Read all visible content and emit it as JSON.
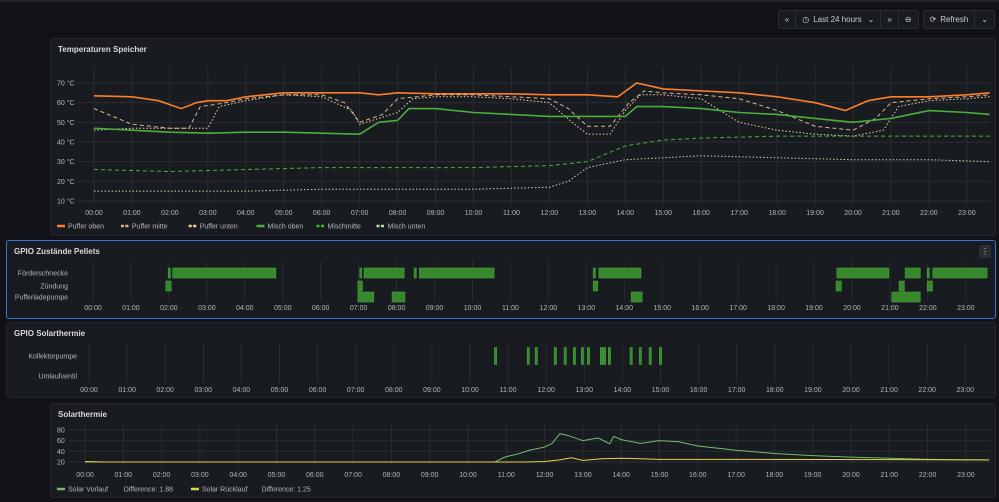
{
  "toolbar": {
    "back_icon": "chevron-double-left-icon",
    "clock_icon": "clock-icon",
    "time_range": "Last 24 hours",
    "forward_icon": "chevron-double-right-icon",
    "zoom_out_icon": "zoom-out-icon",
    "refresh_label": "Refresh",
    "refresh_icon": "refresh-icon"
  },
  "hours": [
    "00:00",
    "01:00",
    "02:00",
    "03:00",
    "04:00",
    "05:00",
    "06:00",
    "07:00",
    "08:00",
    "09:00",
    "10:00",
    "11:00",
    "12:00",
    "13:00",
    "14:00",
    "15:00",
    "16:00",
    "17:00",
    "18:00",
    "19:00",
    "20:00",
    "21:00",
    "22:00",
    "23:00"
  ],
  "colors": {
    "orange": "#ff7f2a",
    "beige": "#e0b68a",
    "green": "#4caf3c",
    "dgreen": "#3f8f3a",
    "vorlauf": "#73bf69",
    "ruecklauf": "#e8d04a"
  },
  "panels": {
    "temp": {
      "title": "Temperaturen Speicher"
    },
    "pellets": {
      "title": "GPIO Zustände Pellets",
      "menu": "⋮"
    },
    "gpio_solar": {
      "title": "GPIO Solarthermie"
    },
    "solar": {
      "title": "Solarthermie"
    }
  },
  "chart_data": [
    {
      "type": "line",
      "title": "Temperaturen Speicher",
      "yticks": [
        "70 °C",
        "60 °C",
        "50 °C",
        "40 °C",
        "30 °C",
        "20 °C",
        "10 °C"
      ],
      "ylim": [
        10,
        70
      ],
      "legend": "bottom",
      "series": [
        {
          "name": "Puffer oben",
          "color": "#ff7f2a",
          "style": "solid",
          "points": [
            [
              0,
              63.5
            ],
            [
              1,
              63
            ],
            [
              1.7,
              61
            ],
            [
              2.3,
              57
            ],
            [
              2.7,
              60
            ],
            [
              3,
              61
            ],
            [
              3.5,
              61
            ],
            [
              4,
              63
            ],
            [
              5,
              65
            ],
            [
              6,
              65
            ],
            [
              7,
              65
            ],
            [
              7.5,
              64
            ],
            [
              8,
              65
            ],
            [
              9,
              64.5
            ],
            [
              10,
              64.5
            ],
            [
              11,
              64.5
            ],
            [
              12,
              64
            ],
            [
              13,
              64
            ],
            [
              13.8,
              63
            ],
            [
              14.3,
              70
            ],
            [
              15,
              67
            ],
            [
              16,
              66
            ],
            [
              17,
              65
            ],
            [
              18,
              63
            ],
            [
              19,
              60
            ],
            [
              19.8,
              56
            ],
            [
              20.4,
              61
            ],
            [
              21,
              63
            ],
            [
              22,
              63
            ],
            [
              23,
              64
            ],
            [
              23.6,
              65
            ]
          ]
        },
        {
          "name": "Puffer mitte",
          "color": "#e0b68a",
          "style": "dash",
          "points": [
            [
              0,
              57
            ],
            [
              1,
              49
            ],
            [
              2,
              47
            ],
            [
              2.5,
              47
            ],
            [
              2.8,
              58
            ],
            [
              3.5,
              60
            ],
            [
              4,
              62
            ],
            [
              5,
              64
            ],
            [
              6,
              64
            ],
            [
              6.6,
              60
            ],
            [
              7,
              50
            ],
            [
              7.6,
              54
            ],
            [
              8,
              62
            ],
            [
              9,
              64
            ],
            [
              10,
              64
            ],
            [
              11,
              63
            ],
            [
              12,
              62
            ],
            [
              12.5,
              57
            ],
            [
              13,
              48
            ],
            [
              13.6,
              48
            ],
            [
              14.1,
              60
            ],
            [
              14.5,
              66
            ],
            [
              15,
              65
            ],
            [
              16,
              64
            ],
            [
              17,
              62
            ],
            [
              18,
              56
            ],
            [
              19,
              48
            ],
            [
              20,
              46
            ],
            [
              20.6,
              52
            ],
            [
              21,
              60
            ],
            [
              22,
              62
            ],
            [
              23,
              63
            ],
            [
              23.6,
              64
            ]
          ]
        },
        {
          "name": "Puffer unten",
          "color": "#f2d3a5",
          "style": "dot",
          "points": [
            [
              0,
              46
            ],
            [
              1,
              47
            ],
            [
              2,
              47
            ],
            [
              3,
              47
            ],
            [
              3.3,
              58
            ],
            [
              4,
              61
            ],
            [
              5,
              64
            ],
            [
              6,
              63
            ],
            [
              6.8,
              56
            ],
            [
              7,
              49
            ],
            [
              8,
              55
            ],
            [
              8.4,
              62
            ],
            [
              9,
              63
            ],
            [
              10,
              63
            ],
            [
              11,
              62
            ],
            [
              12,
              60
            ],
            [
              12.6,
              50
            ],
            [
              13,
              44
            ],
            [
              13.6,
              44
            ],
            [
              14,
              56
            ],
            [
              14.4,
              64
            ],
            [
              15,
              64
            ],
            [
              16,
              62
            ],
            [
              16.5,
              56
            ],
            [
              17,
              50
            ],
            [
              18,
              46
            ],
            [
              19,
              44
            ],
            [
              20,
              43
            ],
            [
              20.8,
              46
            ],
            [
              21.2,
              58
            ],
            [
              22,
              61
            ],
            [
              23,
              62
            ],
            [
              23.6,
              63
            ]
          ]
        },
        {
          "name": "Misch oben",
          "color": "#4caf3c",
          "style": "solid",
          "points": [
            [
              0,
              47
            ],
            [
              1,
              46
            ],
            [
              2,
              45
            ],
            [
              3,
              44.5
            ],
            [
              4,
              45
            ],
            [
              5,
              45
            ],
            [
              6,
              44.5
            ],
            [
              7,
              44
            ],
            [
              7.5,
              50
            ],
            [
              8,
              51
            ],
            [
              8.3,
              57
            ],
            [
              9,
              57
            ],
            [
              10,
              55
            ],
            [
              11,
              54
            ],
            [
              12,
              53
            ],
            [
              13,
              53
            ],
            [
              14,
              53
            ],
            [
              14.3,
              58
            ],
            [
              15,
              58
            ],
            [
              16,
              57
            ],
            [
              17,
              55
            ],
            [
              18,
              54
            ],
            [
              19,
              52
            ],
            [
              20,
              50
            ],
            [
              21,
              52
            ],
            [
              22,
              56
            ],
            [
              23,
              55
            ],
            [
              23.6,
              54
            ]
          ]
        },
        {
          "name": "Mischmitte",
          "color": "#4caf3c",
          "style": "dash",
          "points": [
            [
              0,
              26
            ],
            [
              2,
              25
            ],
            [
              4,
              26
            ],
            [
              6,
              27
            ],
            [
              8,
              27
            ],
            [
              10,
              27
            ],
            [
              12,
              28
            ],
            [
              13,
              30
            ],
            [
              14,
              38
            ],
            [
              15,
              41
            ],
            [
              16,
              42
            ],
            [
              18,
              43
            ],
            [
              20,
              43
            ],
            [
              22,
              43
            ],
            [
              23.6,
              43
            ]
          ]
        },
        {
          "name": "Misch unten",
          "color": "#b8e3b0",
          "style": "dot",
          "points": [
            [
              0,
              15
            ],
            [
              2,
              15
            ],
            [
              4,
              15
            ],
            [
              6,
              16
            ],
            [
              8,
              16
            ],
            [
              10,
              16
            ],
            [
              12,
              17
            ],
            [
              12.5,
              20
            ],
            [
              13,
              27
            ],
            [
              14,
              31
            ],
            [
              15,
              32
            ],
            [
              16,
              33
            ],
            [
              18,
              32
            ],
            [
              20,
              31
            ],
            [
              22,
              31
            ],
            [
              23.6,
              30
            ]
          ]
        }
      ]
    },
    {
      "type": "state-timeline",
      "title": "GPIO Zustände Pellets",
      "rows": [
        {
          "name": "Förderschnecke",
          "on": [
            [
              1.98,
              2.04
            ],
            [
              2.1,
              4.82
            ],
            [
              7.03,
              7.08
            ],
            [
              7.14,
              8.2
            ],
            [
              8.46,
              8.52
            ],
            [
              8.6,
              10.57
            ],
            [
              13.18,
              13.24
            ],
            [
              13.33,
              14.44
            ],
            [
              19.6,
              20.97
            ],
            [
              21.4,
              21.8
            ],
            [
              21.98,
              22.04
            ],
            [
              22.13,
              23.56
            ]
          ]
        },
        {
          "name": "Zündung",
          "on": [
            [
              1.92,
              2.06
            ],
            [
              6.98,
              7.1
            ],
            [
              13.18,
              13.3
            ],
            [
              19.58,
              19.72
            ],
            [
              21.24,
              21.38
            ],
            [
              21.98,
              22.12
            ]
          ]
        },
        {
          "name": "Pufferladepumpe",
          "on": [
            [
              6.98,
              7.4
            ],
            [
              7.88,
              8.22
            ],
            [
              14.18,
              14.47
            ],
            [
              21.05,
              21.8
            ]
          ]
        }
      ]
    },
    {
      "type": "state-timeline",
      "title": "GPIO Solarthermie",
      "rows": [
        {
          "name": "Kollektorpumpe",
          "on": [
            [
              10.64,
              10.7
            ],
            [
              11.5,
              11.56
            ],
            [
              11.71,
              11.77
            ],
            [
              12.21,
              12.27
            ],
            [
              12.47,
              12.53
            ],
            [
              12.71,
              12.77
            ],
            [
              12.92,
              12.98
            ],
            [
              13.08,
              13.14
            ],
            [
              13.42,
              13.48
            ],
            [
              13.5,
              13.56
            ],
            [
              13.63,
              13.69
            ],
            [
              14.2,
              14.26
            ],
            [
              14.44,
              14.5
            ],
            [
              14.7,
              14.76
            ],
            [
              14.97,
              15.03
            ]
          ]
        },
        {
          "name": "Umlaufventil",
          "on": []
        }
      ]
    },
    {
      "type": "line",
      "title": "Solarthermie",
      "yticks": [
        "80",
        "60",
        "40",
        "20"
      ],
      "ylim": [
        20,
        80
      ],
      "legend": "bottom",
      "series": [
        {
          "name": "Solar Vorlauf",
          "color": "#73bf69",
          "diff_label": "Difference: 1.88",
          "points": [
            [
              0,
              20
            ],
            [
              10.7,
              20
            ],
            [
              10.9,
              27
            ],
            [
              11,
              30
            ],
            [
              11.3,
              35
            ],
            [
              11.6,
              42
            ],
            [
              12,
              48
            ],
            [
              12.2,
              55
            ],
            [
              12.4,
              73
            ],
            [
              12.6,
              70
            ],
            [
              13,
              60
            ],
            [
              13.4,
              65
            ],
            [
              13.7,
              54
            ],
            [
              13.8,
              68
            ],
            [
              14,
              62
            ],
            [
              14.5,
              55
            ],
            [
              15,
              60
            ],
            [
              15.5,
              58
            ],
            [
              16,
              50
            ],
            [
              17,
              42
            ],
            [
              18,
              36
            ],
            [
              19,
              32
            ],
            [
              20,
              29
            ],
            [
              21,
              27
            ],
            [
              22,
              25
            ],
            [
              23,
              24
            ],
            [
              23.6,
              24
            ]
          ]
        },
        {
          "name": "Solar Rücklauf",
          "color": "#e8d04a",
          "diff_label": "Difference: 1.25",
          "points": [
            [
              0,
              21
            ],
            [
              0.5,
              20
            ],
            [
              10.7,
              20
            ],
            [
              11.5,
              20
            ],
            [
              12,
              21
            ],
            [
              12.4,
              24
            ],
            [
              12.7,
              28
            ],
            [
              13,
              23
            ],
            [
              13.5,
              26
            ],
            [
              14,
              27
            ],
            [
              14.5,
              26
            ],
            [
              15,
              25
            ],
            [
              16,
              25
            ],
            [
              23.6,
              24
            ]
          ]
        }
      ]
    }
  ]
}
